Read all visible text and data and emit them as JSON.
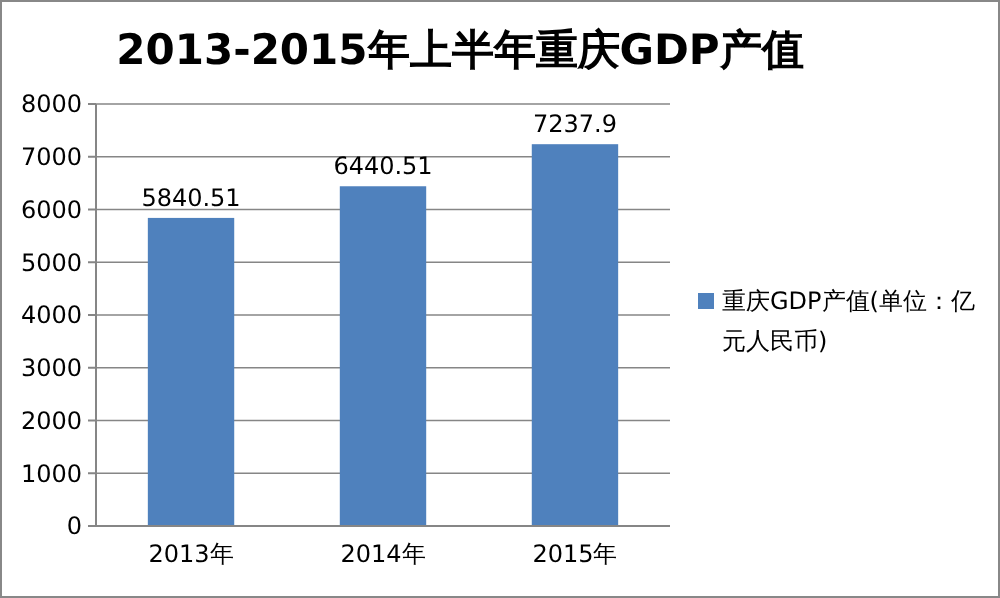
{
  "chart_data": {
    "type": "bar",
    "title": "2013-2015年上半年重庆GDP产值",
    "categories": [
      "2013年",
      "2014年",
      "2015年"
    ],
    "series": [
      {
        "name": "重庆GDP产值(单位：亿元人民币)",
        "color": "#4f81bd",
        "values": [
          5840.51,
          6440.51,
          7237.9
        ]
      }
    ],
    "ylim": [
      0,
      8000
    ],
    "yticks": [
      0,
      1000,
      2000,
      3000,
      4000,
      5000,
      6000,
      7000,
      8000
    ],
    "grid": "y",
    "legend": "right",
    "data_labels": true
  }
}
